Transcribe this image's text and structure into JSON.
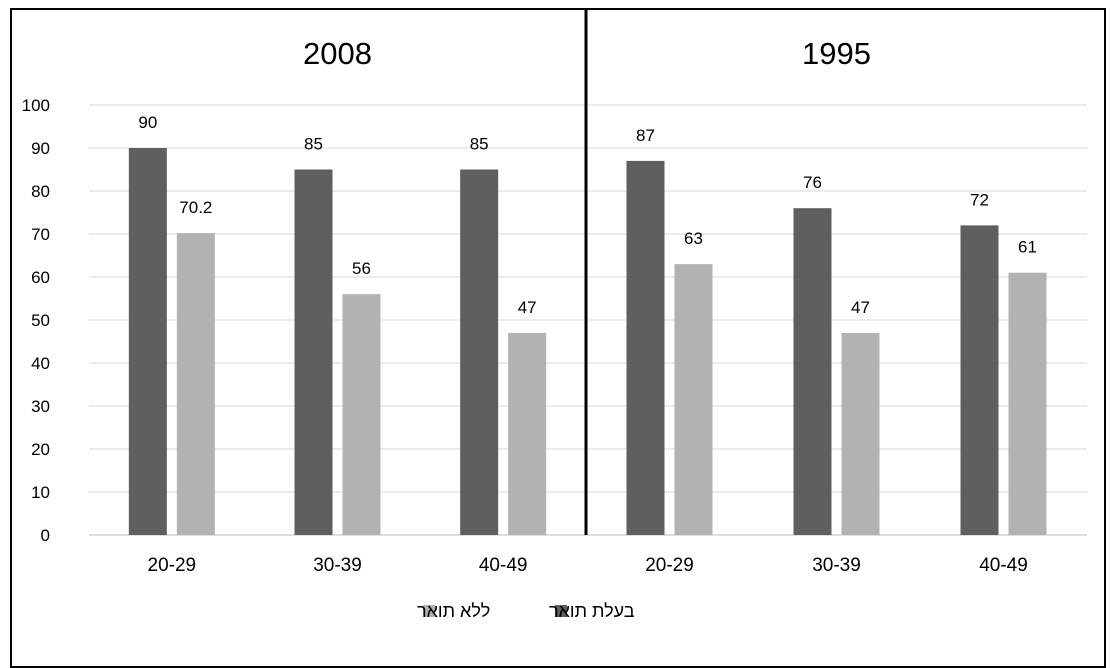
{
  "chart_data": {
    "type": "bar",
    "y_ticks": [
      0,
      10,
      20,
      30,
      40,
      50,
      60,
      70,
      80,
      90,
      100
    ],
    "ylim": [
      0,
      100
    ],
    "grid": true,
    "legend_position": "bottom",
    "colors": {
      "with_degree": "#5f5f5f",
      "without_degree": "#b2b2b2"
    },
    "legend": [
      {
        "key": "with_degree",
        "label": "בעלת תואר"
      },
      {
        "key": "without_degree",
        "label": "ללא תואר"
      }
    ],
    "panels": [
      {
        "title": "2008",
        "categories": [
          "20-29",
          "30-39",
          "40-49"
        ],
        "series": [
          {
            "key": "with_degree",
            "name": "בעלת תואר",
            "values": [
              90,
              85,
              85
            ],
            "labels": [
              "90",
              "85",
              "85"
            ]
          },
          {
            "key": "without_degree",
            "name": "ללא תואר",
            "values": [
              70.2,
              56,
              47
            ],
            "labels": [
              "70.2",
              "56",
              "47"
            ]
          }
        ]
      },
      {
        "title": "1995",
        "categories": [
          "20-29",
          "30-39",
          "40-49"
        ],
        "series": [
          {
            "key": "with_degree",
            "name": "בעלת תואר",
            "values": [
              87,
              76,
              72
            ],
            "labels": [
              "87",
              "76",
              "72"
            ]
          },
          {
            "key": "without_degree",
            "name": "ללא תואר",
            "values": [
              63,
              47,
              61
            ],
            "labels": [
              "63",
              "47",
              "61"
            ]
          }
        ]
      }
    ]
  }
}
